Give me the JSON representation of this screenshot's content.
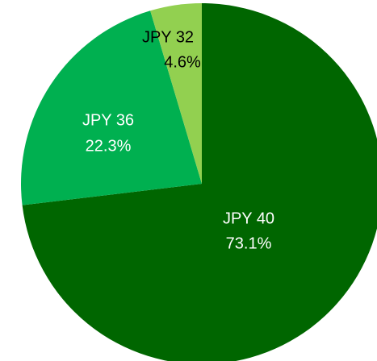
{
  "chart_data": {
    "type": "pie",
    "categories": [
      "JPY 40",
      "JPY 36",
      "JPY 32"
    ],
    "values": [
      73.1,
      22.3,
      4.6
    ],
    "value_labels": [
      "73.1%",
      "22.3%",
      "4.6%"
    ],
    "colors": [
      "#006600",
      "#00b050",
      "#92d050"
    ]
  }
}
